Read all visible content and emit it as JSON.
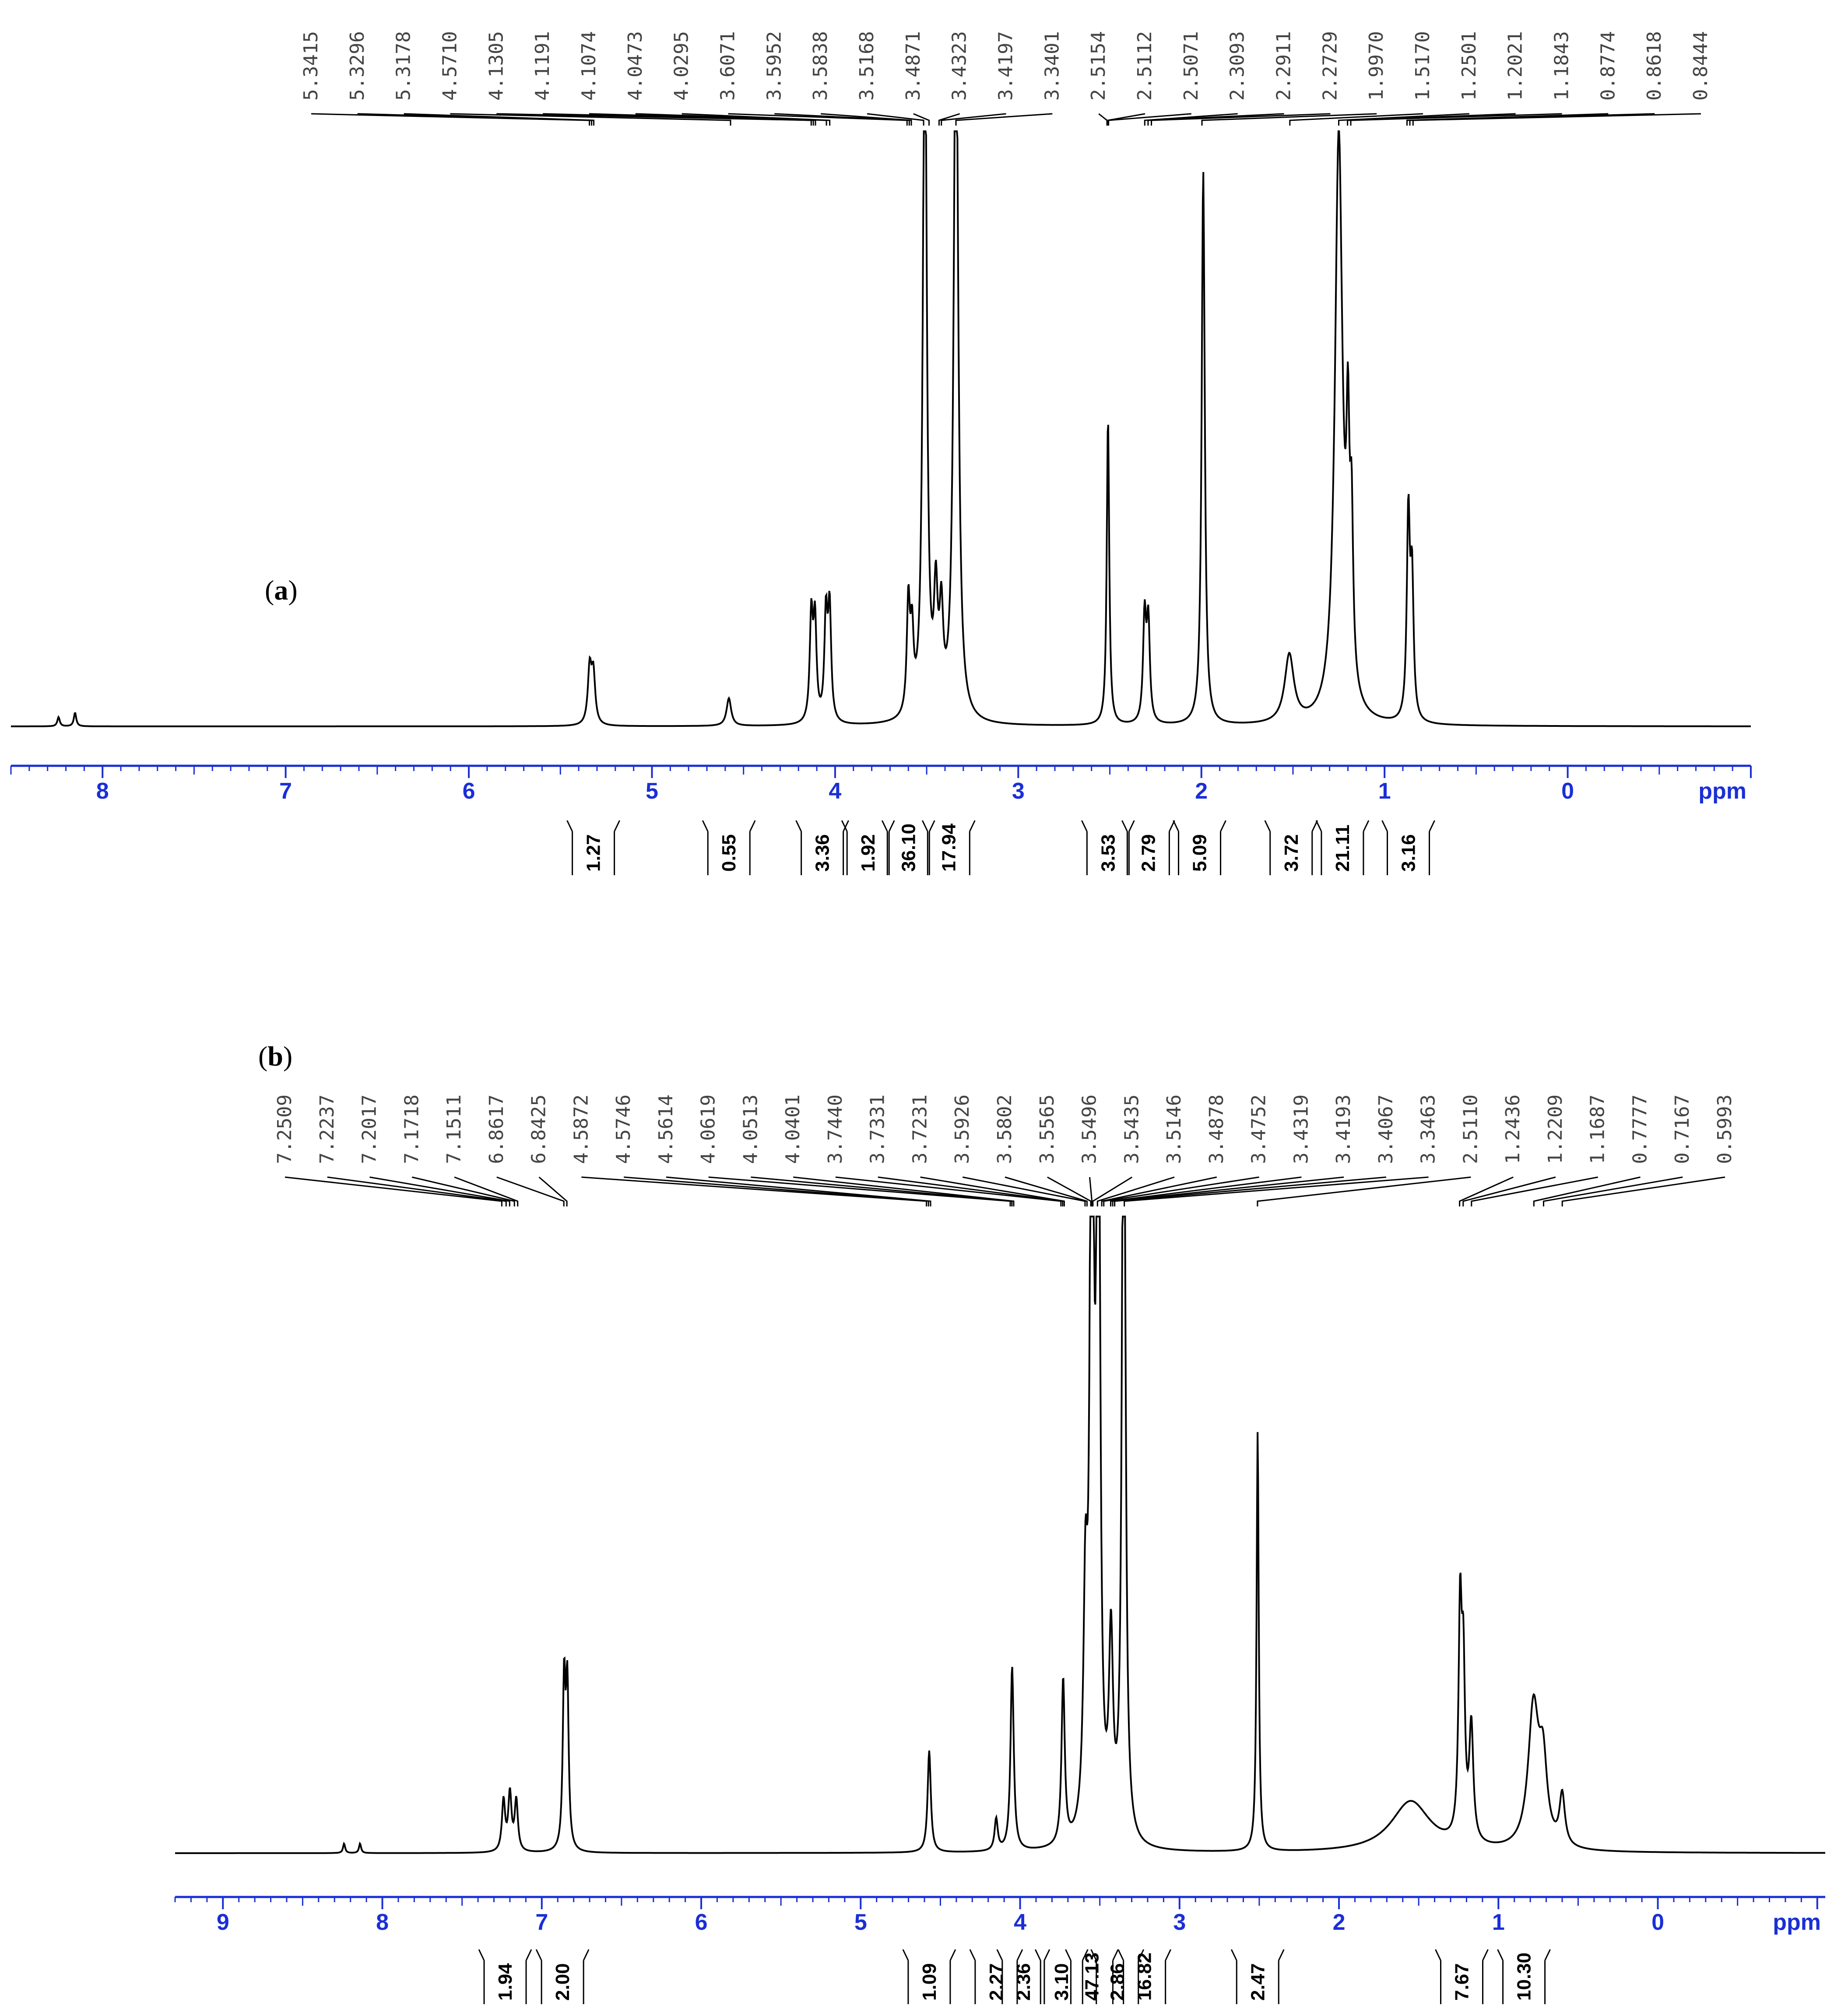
{
  "chart_data": [
    {
      "panel": "a",
      "type": "line",
      "unit_label": "ppm",
      "xlim": [
        8.5,
        -1.0
      ],
      "x_ticks": [
        8,
        7,
        6,
        5,
        4,
        3,
        2,
        1,
        0
      ],
      "peak_labels": [
        "5.3415",
        "5.3296",
        "5.3178",
        "4.5710",
        "4.1305",
        "4.1191",
        "4.1074",
        "4.0473",
        "4.0295",
        "3.6071",
        "3.5952",
        "3.5838",
        "3.5168",
        "3.4871",
        "3.4323",
        "3.4197",
        "3.3401",
        "2.5154",
        "2.5112",
        "2.5071",
        "2.3093",
        "2.2911",
        "2.2729",
        "1.9970",
        "1.5170",
        "1.2501",
        "1.2021",
        "1.1843",
        "0.8774",
        "0.8618",
        "0.8444"
      ],
      "peaks": [
        {
          "x": 8.24,
          "h": 0.015,
          "w": 0.008
        },
        {
          "x": 8.15,
          "h": 0.022,
          "w": 0.008
        },
        {
          "x": 5.34,
          "h": 0.09,
          "w": 0.012
        },
        {
          "x": 5.32,
          "h": 0.08,
          "w": 0.012
        },
        {
          "x": 4.58,
          "h": 0.045,
          "w": 0.015
        },
        {
          "x": 4.13,
          "h": 0.17,
          "w": 0.01
        },
        {
          "x": 4.11,
          "h": 0.16,
          "w": 0.01
        },
        {
          "x": 4.05,
          "h": 0.17,
          "w": 0.01
        },
        {
          "x": 4.03,
          "h": 0.18,
          "w": 0.01
        },
        {
          "x": 3.6,
          "h": 0.18,
          "w": 0.01
        },
        {
          "x": 3.58,
          "h": 0.12,
          "w": 0.01
        },
        {
          "x": 3.51,
          "h": 1.25,
          "w": 0.012
        },
        {
          "x": 3.45,
          "h": 0.18,
          "w": 0.012
        },
        {
          "x": 3.42,
          "h": 0.15,
          "w": 0.012
        },
        {
          "x": 3.34,
          "h": 1.25,
          "w": 0.014
        },
        {
          "x": 2.51,
          "h": 0.5,
          "w": 0.008
        },
        {
          "x": 2.31,
          "h": 0.17,
          "w": 0.01
        },
        {
          "x": 2.29,
          "h": 0.16,
          "w": 0.01
        },
        {
          "x": 1.99,
          "h": 0.9,
          "w": 0.01
        },
        {
          "x": 1.52,
          "h": 0.11,
          "w": 0.03
        },
        {
          "x": 1.25,
          "h": 0.95,
          "w": 0.025
        },
        {
          "x": 1.2,
          "h": 0.35,
          "w": 0.01
        },
        {
          "x": 1.18,
          "h": 0.25,
          "w": 0.01
        },
        {
          "x": 0.87,
          "h": 0.33,
          "w": 0.01
        },
        {
          "x": 0.85,
          "h": 0.22,
          "w": 0.01
        }
      ],
      "integrals": [
        {
          "x": 5.32,
          "value": "1.27"
        },
        {
          "x": 4.58,
          "value": "0.55"
        },
        {
          "x": 4.07,
          "value": "3.36"
        },
        {
          "x": 3.82,
          "value": "1.92"
        },
        {
          "x": 3.6,
          "value": "36.10"
        },
        {
          "x": 3.38,
          "value": "17.94"
        },
        {
          "x": 2.51,
          "value": "3.53"
        },
        {
          "x": 2.29,
          "value": "2.79"
        },
        {
          "x": 2.01,
          "value": "5.09"
        },
        {
          "x": 1.51,
          "value": "3.72"
        },
        {
          "x": 1.23,
          "value": "21.11"
        },
        {
          "x": 0.87,
          "value": "3.16"
        }
      ]
    },
    {
      "panel": "b",
      "type": "line",
      "unit_label": "ppm",
      "xlim": [
        9.3,
        -1.05
      ],
      "x_ticks": [
        9,
        8,
        7,
        6,
        5,
        4,
        3,
        2,
        1,
        0
      ],
      "peak_labels": [
        "7.2509",
        "7.2237",
        "7.2017",
        "7.1718",
        "7.1511",
        "6.8617",
        "6.8425",
        "4.5872",
        "4.5746",
        "4.5614",
        "4.0619",
        "4.0513",
        "4.0401",
        "3.7440",
        "3.7331",
        "3.7231",
        "3.5926",
        "3.5802",
        "3.5565",
        "3.5496",
        "3.5435",
        "3.5146",
        "3.4878",
        "3.4752",
        "3.4319",
        "3.4193",
        "3.4067",
        "3.3463",
        "2.5110",
        "1.2436",
        "1.2209",
        "1.1687",
        "0.7777",
        "0.7167",
        "0.5993"
      ],
      "peaks": [
        {
          "x": 8.24,
          "h": 0.015,
          "w": 0.008
        },
        {
          "x": 8.14,
          "h": 0.015,
          "w": 0.008
        },
        {
          "x": 7.24,
          "h": 0.08,
          "w": 0.012
        },
        {
          "x": 7.2,
          "h": 0.09,
          "w": 0.012
        },
        {
          "x": 7.16,
          "h": 0.08,
          "w": 0.012
        },
        {
          "x": 6.86,
          "h": 0.26,
          "w": 0.01
        },
        {
          "x": 6.84,
          "h": 0.25,
          "w": 0.01
        },
        {
          "x": 4.57,
          "h": 0.16,
          "w": 0.012
        },
        {
          "x": 4.15,
          "h": 0.05,
          "w": 0.012
        },
        {
          "x": 4.05,
          "h": 0.29,
          "w": 0.012
        },
        {
          "x": 3.73,
          "h": 0.26,
          "w": 0.012
        },
        {
          "x": 3.59,
          "h": 0.35,
          "w": 0.015
        },
        {
          "x": 3.55,
          "h": 1.6,
          "w": 0.012
        },
        {
          "x": 3.51,
          "h": 1.5,
          "w": 0.012
        },
        {
          "x": 3.43,
          "h": 0.3,
          "w": 0.015
        },
        {
          "x": 3.35,
          "h": 1.5,
          "w": 0.012
        },
        {
          "x": 2.51,
          "h": 0.66,
          "w": 0.008
        },
        {
          "x": 1.55,
          "h": 0.08,
          "w": 0.15
        },
        {
          "x": 1.24,
          "h": 0.35,
          "w": 0.012
        },
        {
          "x": 1.22,
          "h": 0.25,
          "w": 0.012
        },
        {
          "x": 1.17,
          "h": 0.18,
          "w": 0.015
        },
        {
          "x": 0.78,
          "h": 0.22,
          "w": 0.04
        },
        {
          "x": 0.72,
          "h": 0.12,
          "w": 0.03
        },
        {
          "x": 0.6,
          "h": 0.08,
          "w": 0.02
        }
      ],
      "integrals": [
        {
          "x": 7.23,
          "value": "1.94"
        },
        {
          "x": 6.87,
          "value": "2.00"
        },
        {
          "x": 4.57,
          "value": "1.09"
        },
        {
          "x": 4.15,
          "value": "2.27"
        },
        {
          "x": 3.98,
          "value": "2.36"
        },
        {
          "x": 3.74,
          "value": "3.10"
        },
        {
          "x": 3.55,
          "value": "47.13"
        },
        {
          "x": 3.39,
          "value": "2.86"
        },
        {
          "x": 3.22,
          "value": "16.82"
        },
        {
          "x": 2.51,
          "value": "2.47"
        },
        {
          "x": 1.23,
          "value": "7.67"
        },
        {
          "x": 0.84,
          "value": "10.30"
        }
      ]
    }
  ]
}
